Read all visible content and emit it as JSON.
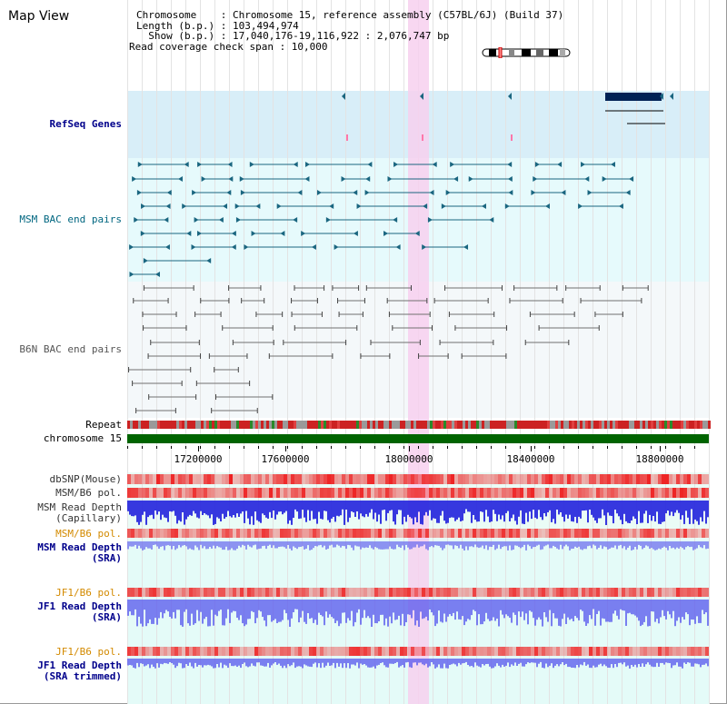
{
  "title": "Map View",
  "info": {
    "line1": "Chromosome    : Chromosome 15, reference assembly (C57BL/6J) (Build 37)",
    "line2": "Length (b.p.) : 103,494,974",
    "line3": "  Show (b.p.) : 17,040,176-19,116,922 : 2,076,747 bp",
    "line4": "Read coverage check span : 10,000"
  },
  "tracks": {
    "refseq": "RefSeq Genes",
    "msm_bac": "MSM BAC end pairs",
    "b6n_bac": "B6N BAC end pairs",
    "repeat": "Repeat",
    "chromosome": "chromosome 15",
    "dbsnp": "dbSNP(Mouse)",
    "msm_b6_pol1": "MSM/B6 pol.",
    "msm_read_depth_cap1": "MSM Read Depth",
    "msm_read_depth_cap2": "(Capillary)",
    "msm_b6_pol2": "MSM/B6 pol.",
    "msm_read_depth_sra1": "MSM Read Depth",
    "msm_read_depth_sra2": "(SRA)",
    "jf1_b6_pol1": "JF1/B6 pol.",
    "jf1_read_depth1": "JF1 Read Depth",
    "jf1_read_depth2": "(SRA)",
    "jf1_b6_pol2": "JF1/B6 pol.",
    "jf1_read_depth_trim1": "JF1 Read Depth",
    "jf1_read_depth_trim2": "(SRA trimmed)"
  },
  "axis": {
    "ticks": [
      "17200000",
      "17600000",
      "18000000",
      "18400000",
      "18800000"
    ]
  },
  "colors": {
    "highlight": "#f7d0ee",
    "refseq_bg": "#d6eef8",
    "bac_bg": "#e4f8fa",
    "gene": "#002255",
    "msm_line": "#1a6680",
    "b6n_line": "#707070",
    "chromosome": "#006400",
    "read_depth": "#3333ee"
  }
}
